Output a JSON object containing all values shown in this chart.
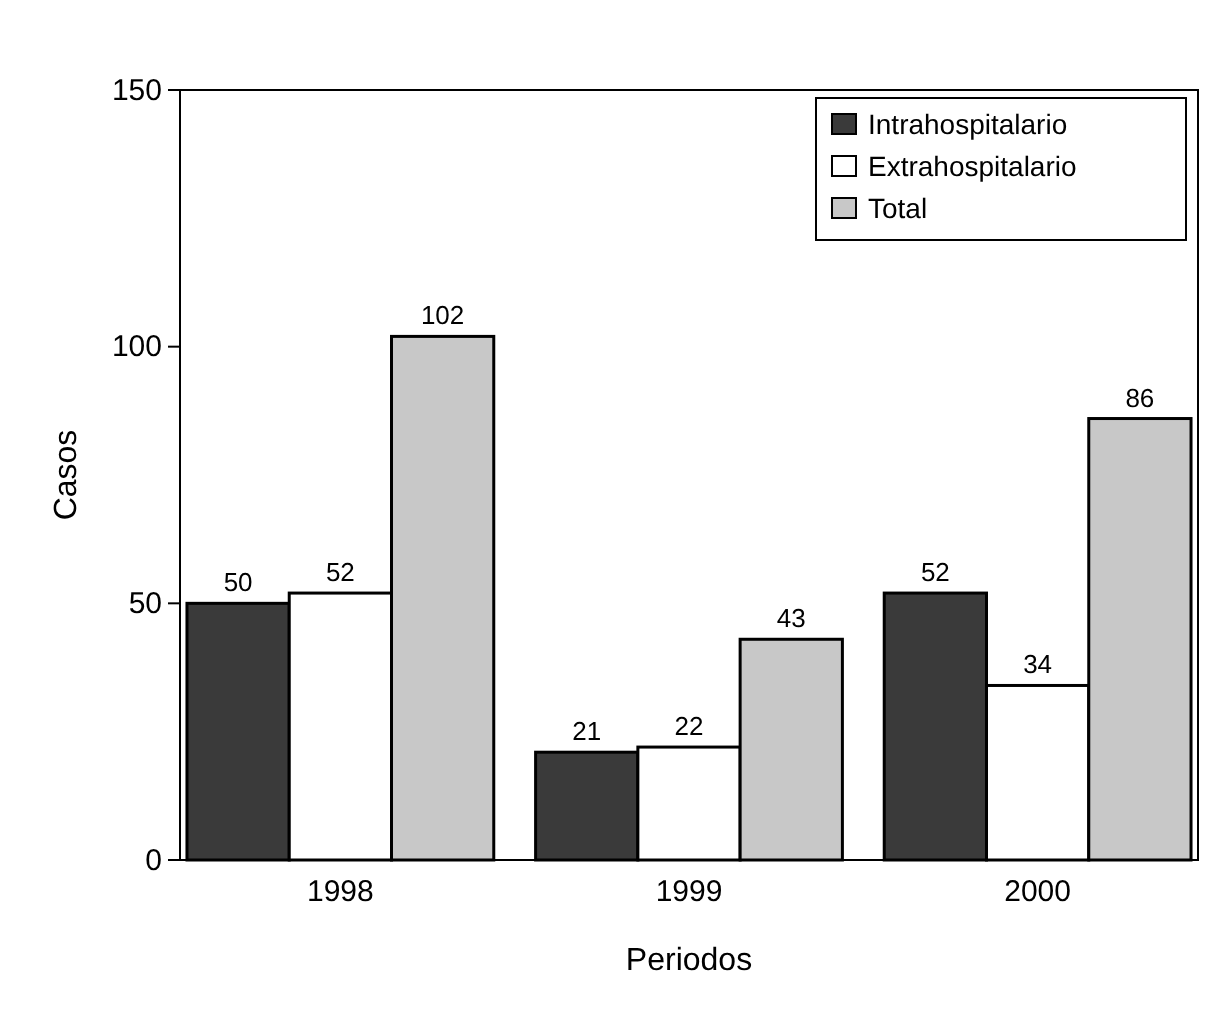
{
  "chart_data": {
    "type": "bar",
    "xlabel": "Periodos",
    "ylabel": "Casos",
    "categories": [
      "1998",
      "1999",
      "2000"
    ],
    "series": [
      {
        "name": "Intrahospitalario",
        "color": "#3a3a3a",
        "values": [
          50,
          21,
          52
        ]
      },
      {
        "name": "Extrahospitalario",
        "color": "#ffffff",
        "values": [
          52,
          22,
          34
        ]
      },
      {
        "name": "Total",
        "color": "#c8c8c8",
        "values": [
          102,
          43,
          86
        ]
      }
    ],
    "ylim": [
      0,
      150
    ],
    "yticks": [
      0,
      50,
      100,
      150
    ],
    "grid": false,
    "legend": "top right",
    "data_labels": true
  }
}
